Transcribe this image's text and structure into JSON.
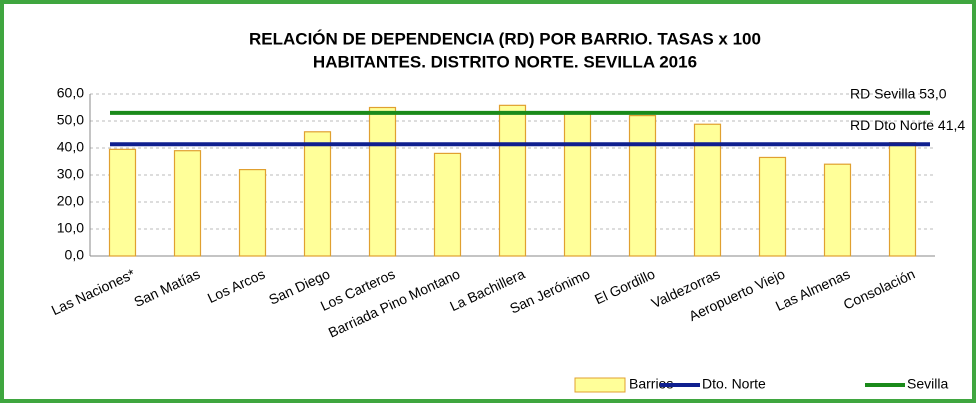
{
  "chart_data": {
    "type": "bar",
    "title": [
      "RELACIÓN DE DEPENDENCIA (RD) POR BARRIO. TASAS x 100",
      "HABITANTES. DISTRITO NORTE. SEVILLA 2016"
    ],
    "categories": [
      "Las Naciones*",
      "San Matías",
      "Los Arcos",
      "San Diego",
      "Los Carteros",
      "Barriada Pino Montano",
      "La Bachillera",
      "San Jerónimo",
      "El Gordillo",
      "Valdezorras",
      "Aeropuerto Viejo",
      "Las Almenas",
      "Consolación"
    ],
    "series": [
      {
        "name": "Barrios",
        "color": "#ffff99",
        "values": [
          39.5,
          39,
          32,
          46,
          55,
          38,
          55.8,
          53.3,
          52,
          48.8,
          36.5,
          34,
          42
        ]
      }
    ],
    "reference_lines": [
      {
        "name": "Dto. Norte",
        "color": "#0f1f8f",
        "value": 41.4,
        "label": "RD Dto Norte 41,4"
      },
      {
        "name": "Sevilla",
        "color": "#1a8a1a",
        "value": 53.0,
        "label": "RD Sevilla 53,0"
      }
    ],
    "ylim": [
      0,
      60
    ],
    "yticks": [
      {
        "value": 0,
        "label": "0,0"
      },
      {
        "value": 10,
        "label": "10,0"
      },
      {
        "value": 20,
        "label": "20,0"
      },
      {
        "value": 30,
        "label": "30,0"
      },
      {
        "value": 40,
        "label": "40,0"
      },
      {
        "value": 50,
        "label": "50,0"
      },
      {
        "value": 60,
        "label": "60,0"
      }
    ],
    "grid": true,
    "legend": "bottom-right"
  }
}
